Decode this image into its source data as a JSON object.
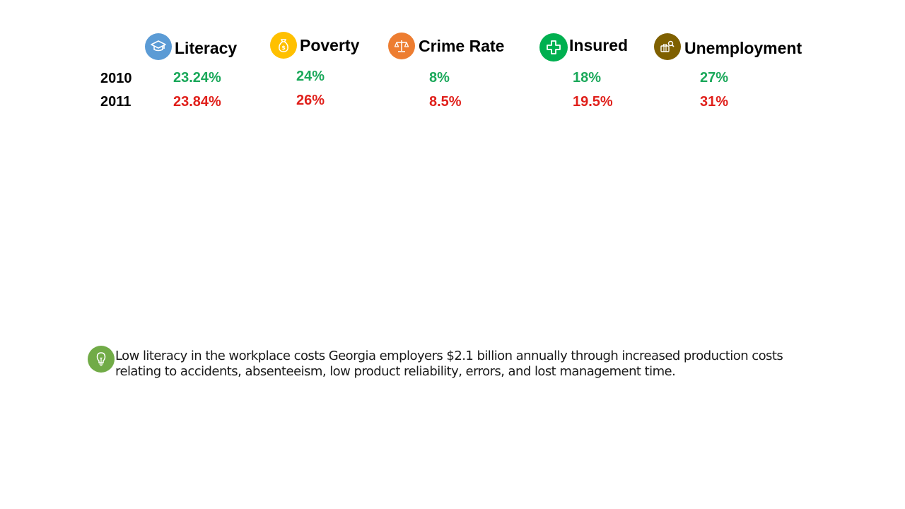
{
  "headers": {
    "literacy": "Literacy",
    "poverty": "Poverty",
    "crime": "Crime Rate",
    "insured": "Insured",
    "unemployment": "Unemployment"
  },
  "icons": {
    "literacy": {
      "name": "graduation-cap-icon",
      "color": "#5b9bd5"
    },
    "poverty": {
      "name": "money-bag-icon",
      "color": "#ffc000"
    },
    "crime": {
      "name": "scales-icon",
      "color": "#ed7d31"
    },
    "insured": {
      "name": "medical-cross-icon",
      "color": "#00b050"
    },
    "unemployment": {
      "name": "job-search-icon",
      "color": "#7f6000"
    },
    "note": {
      "name": "lightbulb-icon",
      "color": "#71ab47"
    }
  },
  "colors": {
    "value_2010": "#1aa85a",
    "value_2011": "#e0201b"
  },
  "rows": [
    {
      "year": "2010",
      "literacy": "23.24%",
      "poverty": "24%",
      "crime": "8%",
      "insured": "18%",
      "unemployment": "27%"
    },
    {
      "year": "2011",
      "literacy": "23.84%",
      "poverty": "26%",
      "crime": "8.5%",
      "insured": "19.5%",
      "unemployment": "31%"
    }
  ],
  "note": {
    "text": "Low literacy in the workplace costs Georgia employers $2.1 billion annually through increased production costs relating to accidents, absenteeism, low product reliability, errors, and lost management time."
  }
}
